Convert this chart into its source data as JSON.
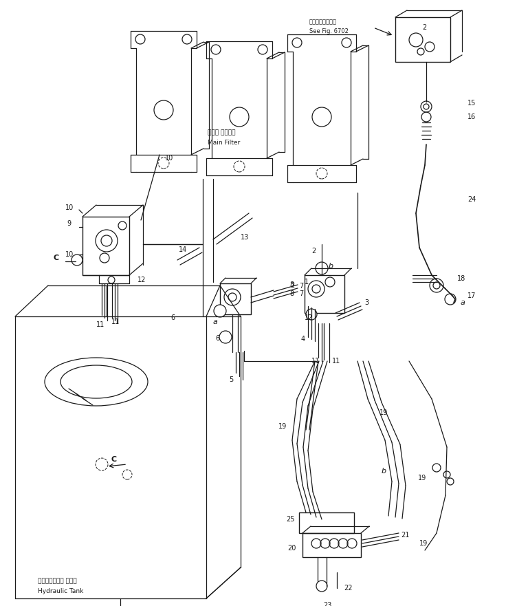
{
  "bg_color": "#ffffff",
  "line_color": "#1a1a1a",
  "fig_width": 7.36,
  "fig_height": 8.81,
  "dpi": 100,
  "labels": {
    "main_filter_ja": "メイン フィルタ",
    "main_filter_en": "Main Filter",
    "hydraulic_tank_ja": "ハイドロリック タンク",
    "hydraulic_tank_en": "Hydraulic Tank",
    "see_fig_ja": "第６７０２図参照",
    "see_fig_en": "See Fig. 6702"
  }
}
